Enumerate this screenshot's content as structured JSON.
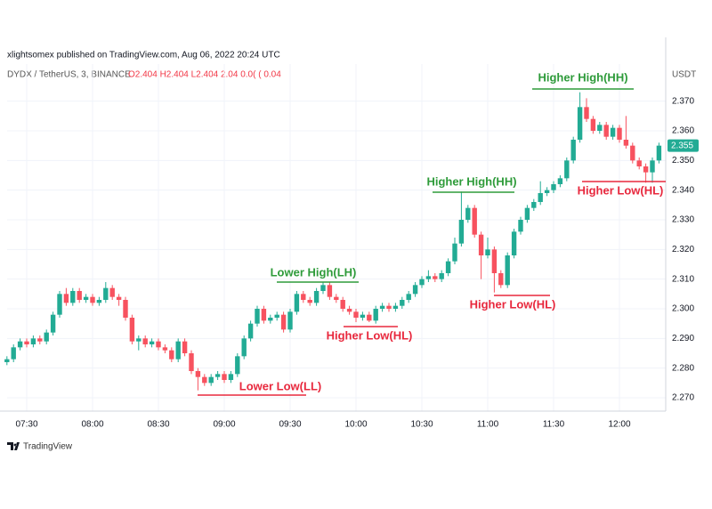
{
  "chart_data": {
    "type": "candlestick",
    "published": "xlightsomex published on TradingView.com, Aug 06, 2022 20:24 UTC",
    "symbol": "DYDX / TetherUS, 3, BINANCE",
    "ohlc_text": "O2.404  H2.404  L2.404  2.04  0.0( (  0.04",
    "currency": "USDT",
    "brand": "TradingView",
    "up_color": "#22ab94",
    "down_color": "#f7525f",
    "grid": true,
    "x": [
      "07:21",
      "07:24",
      "07:27",
      "07:30",
      "07:33",
      "07:36",
      "07:39",
      "07:42",
      "07:45",
      "07:48",
      "07:51",
      "07:54",
      "07:57",
      "08:00",
      "08:03",
      "08:06",
      "08:09",
      "08:12",
      "08:15",
      "08:18",
      "08:21",
      "08:24",
      "08:27",
      "08:30",
      "08:33",
      "08:36",
      "08:39",
      "08:42",
      "08:45",
      "08:48",
      "08:51",
      "08:54",
      "08:57",
      "09:00",
      "09:03",
      "09:06",
      "09:09",
      "09:12",
      "09:15",
      "09:18",
      "09:21",
      "09:24",
      "09:27",
      "09:30",
      "09:33",
      "09:36",
      "09:39",
      "09:42",
      "09:45",
      "09:48",
      "09:51",
      "09:54",
      "09:57",
      "10:00",
      "10:03",
      "10:06",
      "10:09",
      "10:12",
      "10:15",
      "10:18",
      "10:21",
      "10:24",
      "10:27",
      "10:30",
      "10:33",
      "10:36",
      "10:39",
      "10:42",
      "10:45",
      "10:48",
      "10:51",
      "10:54",
      "10:57",
      "11:00",
      "11:03",
      "11:06",
      "11:09",
      "11:12",
      "11:15",
      "11:18",
      "11:21",
      "11:24",
      "11:27",
      "11:30",
      "11:33",
      "11:36",
      "11:39",
      "11:42",
      "11:45",
      "11:48",
      "11:51",
      "11:54",
      "11:57",
      "12:00",
      "12:03",
      "12:06",
      "12:09",
      "12:12",
      "12:15",
      "12:18"
    ],
    "open": [
      2.282,
      2.283,
      2.287,
      2.289,
      2.288,
      2.29,
      2.289,
      2.292,
      2.298,
      2.305,
      2.302,
      2.306,
      2.303,
      2.304,
      2.302,
      2.303,
      2.307,
      2.304,
      2.303,
      2.297,
      2.289,
      2.29,
      2.288,
      2.289,
      2.287,
      2.286,
      2.283,
      2.289,
      2.285,
      2.279,
      2.277,
      2.275,
      2.277,
      2.278,
      2.276,
      2.278,
      2.284,
      2.29,
      2.295,
      2.3,
      2.296,
      2.297,
      2.298,
      2.293,
      2.299,
      2.305,
      2.303,
      2.302,
      2.306,
      2.308,
      2.304,
      2.303,
      2.3,
      2.299,
      2.297,
      2.298,
      2.296,
      2.3,
      2.301,
      2.3,
      2.301,
      2.303,
      2.305,
      2.308,
      2.31,
      2.311,
      2.31,
      2.312,
      2.316,
      2.322,
      2.33,
      2.334,
      2.325,
      2.318,
      2.32,
      2.312,
      2.308,
      2.318,
      2.326,
      2.33,
      2.334,
      2.336,
      2.339,
      2.34,
      2.342,
      2.344,
      2.35,
      2.357,
      2.368,
      2.364,
      2.36,
      2.362,
      2.358,
      2.361,
      2.357,
      2.355,
      2.35,
      2.348,
      2.346,
      2.35
    ],
    "high": [
      2.284,
      2.288,
      2.29,
      2.29,
      2.291,
      2.291,
      2.293,
      2.299,
      2.306,
      2.307,
      2.307,
      2.307,
      2.305,
      2.305,
      2.304,
      2.309,
      2.308,
      2.305,
      2.304,
      2.298,
      2.291,
      2.291,
      2.29,
      2.29,
      2.288,
      2.287,
      2.29,
      2.29,
      2.286,
      2.28,
      2.278,
      2.278,
      2.279,
      2.279,
      2.279,
      2.285,
      2.291,
      2.296,
      2.301,
      2.301,
      2.298,
      2.299,
      2.299,
      2.3,
      2.306,
      2.306,
      2.304,
      2.307,
      2.309,
      2.309,
      2.305,
      2.304,
      2.301,
      2.3,
      2.299,
      2.299,
      2.301,
      2.302,
      2.302,
      2.302,
      2.304,
      2.306,
      2.309,
      2.311,
      2.313,
      2.312,
      2.313,
      2.317,
      2.324,
      2.3395,
      2.335,
      2.335,
      2.326,
      2.324,
      2.321,
      2.313,
      2.319,
      2.327,
      2.331,
      2.335,
      2.337,
      2.343,
      2.341,
      2.343,
      2.345,
      2.351,
      2.358,
      2.373,
      2.371,
      2.365,
      2.363,
      2.363,
      2.362,
      2.362,
      2.365,
      2.356,
      2.351,
      2.349,
      2.351,
      2.356
    ],
    "low": [
      2.281,
      2.282,
      2.286,
      2.287,
      2.287,
      2.288,
      2.288,
      2.291,
      2.297,
      2.301,
      2.301,
      2.302,
      2.302,
      2.301,
      2.301,
      2.302,
      2.303,
      2.301,
      2.296,
      2.288,
      2.286,
      2.287,
      2.287,
      2.286,
      2.285,
      2.282,
      2.282,
      2.284,
      2.278,
      2.2725,
      2.274,
      2.274,
      2.276,
      2.275,
      2.275,
      2.277,
      2.283,
      2.289,
      2.294,
      2.295,
      2.295,
      2.296,
      2.292,
      2.292,
      2.298,
      2.302,
      2.301,
      2.301,
      2.305,
      2.303,
      2.302,
      2.299,
      2.298,
      2.2955,
      2.296,
      2.2955,
      2.295,
      2.299,
      2.299,
      2.299,
      2.3,
      2.302,
      2.304,
      2.307,
      2.309,
      2.309,
      2.309,
      2.311,
      2.315,
      2.321,
      2.329,
      2.324,
      2.31,
      2.317,
      2.3055,
      2.307,
      2.307,
      2.317,
      2.325,
      2.329,
      2.333,
      2.335,
      2.338,
      2.339,
      2.341,
      2.343,
      2.349,
      2.356,
      2.363,
      2.359,
      2.359,
      2.357,
      2.357,
      2.356,
      2.354,
      2.349,
      2.347,
      2.3425,
      2.3425,
      2.349
    ],
    "close": [
      2.283,
      2.287,
      2.289,
      2.288,
      2.29,
      2.289,
      2.292,
      2.298,
      2.305,
      2.302,
      2.306,
      2.303,
      2.304,
      2.302,
      2.303,
      2.307,
      2.304,
      2.303,
      2.297,
      2.289,
      2.29,
      2.288,
      2.289,
      2.287,
      2.286,
      2.283,
      2.289,
      2.285,
      2.279,
      2.277,
      2.275,
      2.277,
      2.278,
      2.276,
      2.278,
      2.284,
      2.29,
      2.295,
      2.3,
      2.296,
      2.297,
      2.298,
      2.293,
      2.299,
      2.305,
      2.303,
      2.302,
      2.306,
      2.308,
      2.304,
      2.303,
      2.3,
      2.299,
      2.297,
      2.298,
      2.296,
      2.3,
      2.301,
      2.3,
      2.301,
      2.303,
      2.305,
      2.308,
      2.31,
      2.311,
      2.31,
      2.312,
      2.316,
      2.322,
      2.33,
      2.334,
      2.325,
      2.318,
      2.32,
      2.312,
      2.308,
      2.318,
      2.326,
      2.33,
      2.334,
      2.336,
      2.339,
      2.34,
      2.342,
      2.344,
      2.35,
      2.357,
      2.368,
      2.364,
      2.36,
      2.362,
      2.358,
      2.361,
      2.357,
      2.355,
      2.35,
      2.348,
      2.346,
      2.35,
      2.355
    ],
    "last_price": 2.355,
    "ylim": [
      2.2655,
      2.3825
    ],
    "yticks": [
      {
        "value": 2.27,
        "label": "2.270"
      },
      {
        "value": 2.28,
        "label": "2.280"
      },
      {
        "value": 2.29,
        "label": "2.290"
      },
      {
        "value": 2.3,
        "label": "2.300"
      },
      {
        "value": 2.31,
        "label": "2.310"
      },
      {
        "value": 2.32,
        "label": "2.320"
      },
      {
        "value": 2.33,
        "label": "2.330"
      },
      {
        "value": 2.34,
        "label": "2.340"
      },
      {
        "value": 2.35,
        "label": "2.350"
      },
      {
        "value": 2.36,
        "label": "2.360"
      },
      {
        "value": 2.37,
        "label": "2.370"
      }
    ],
    "xticks": [
      "07:30",
      "08:00",
      "08:30",
      "09:00",
      "09:30",
      "10:00",
      "10:30",
      "11:00",
      "11:30",
      "12:00"
    ],
    "annotations": [
      {
        "text": "Higher High(HH)",
        "color": "#2e9b3a"
      },
      {
        "text": "Higher High(HH)",
        "color": "#2e9b3a"
      },
      {
        "text": "Lower High(LH)",
        "color": "#2e9b3a"
      },
      {
        "text": "Lower Low(LL)",
        "color": "#e8283d"
      },
      {
        "text": "Higher Low(HL)",
        "color": "#e8283d"
      },
      {
        "text": "Higher Low(HL)",
        "color": "#e8283d"
      },
      {
        "text": "Higher Low(HL)",
        "color": "#e8283d"
      }
    ]
  }
}
